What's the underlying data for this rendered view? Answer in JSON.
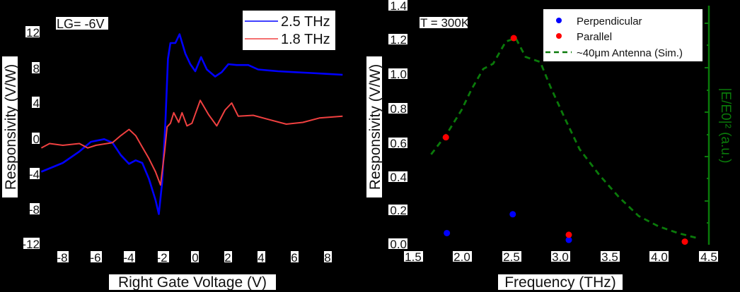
{
  "chart_data": [
    {
      "type": "line",
      "title": "",
      "annotation": "LG= -6V",
      "xlabel": "Right Gate Voltage (V)",
      "ylabel": "Responsivity (V/W)",
      "xlim": [
        -9.3,
        9.3
      ],
      "ylim": [
        -12,
        12
      ],
      "xticks": [
        -8,
        -6,
        -4,
        -2,
        0,
        2,
        4,
        6,
        8
      ],
      "yticks": [
        12,
        8,
        4,
        0,
        -4,
        -8,
        -12
      ],
      "legend_position": "upper right",
      "grid": false,
      "series": [
        {
          "name": "2.5 THz",
          "color": "#0000ff",
          "x": [
            -9.3,
            -8,
            -7,
            -6.3,
            -5.5,
            -5,
            -4.5,
            -4,
            -3.6,
            -3.2,
            -2.8,
            -2.4,
            -2.2,
            -2.0,
            -1.8,
            -1.65,
            -1.5,
            -1.2,
            -0.95,
            -0.6,
            -0.3,
            0,
            0.35,
            0.7,
            1.2,
            1.6,
            2.0,
            2.5,
            3.2,
            3.8,
            5,
            6,
            7,
            8,
            8.9
          ],
          "y": [
            -3.8,
            -2.8,
            -1.5,
            -0.4,
            -0.1,
            -0.5,
            -1.9,
            -2.9,
            -2.5,
            -2.8,
            -4.6,
            -7,
            -8.6,
            -5,
            2,
            9,
            10.8,
            10.8,
            11.8,
            9.6,
            8.4,
            7.6,
            9.2,
            7.8,
            7.0,
            7.5,
            8.4,
            8.3,
            8.3,
            7.8,
            7.6,
            7.5,
            7.4,
            7.3,
            7.2
          ]
        },
        {
          "name": "1.8 THz",
          "color": "#f04040",
          "x": [
            -9.3,
            -8.8,
            -8,
            -7,
            -6.5,
            -6,
            -5,
            -4.5,
            -4,
            -3.6,
            -3.2,
            -2.8,
            -2.4,
            -2.1,
            -1.85,
            -1.7,
            -1.5,
            -1.3,
            -1.0,
            -0.8,
            -0.5,
            -0.2,
            0.3,
            0.8,
            1.3,
            1.8,
            2.2,
            2.6,
            3.5,
            4.5,
            5.5,
            6.5,
            7.5,
            8.9
          ],
          "y": [
            -1.1,
            -0.6,
            -0.8,
            -0.6,
            -1.1,
            -0.8,
            -0.5,
            0.3,
            1.0,
            0.3,
            -1.0,
            -2.3,
            -3.8,
            -5.3,
            -1.5,
            1.3,
            1.7,
            2.9,
            1.8,
            2.9,
            1.4,
            1.7,
            4.3,
            2.7,
            1.4,
            3.2,
            4.0,
            2.5,
            2.6,
            2.1,
            1.6,
            1.8,
            2.3,
            2.5
          ]
        }
      ]
    },
    {
      "type": "scatter",
      "title": "",
      "annotation": "T = 300K",
      "xlabel": "Frequency (THz)",
      "ylabel": "Responsivity (V/W)",
      "ylabel_right": "|E/E0|² (a.u.)",
      "xlim": [
        1.5,
        4.5
      ],
      "ylim": [
        0.0,
        1.4
      ],
      "xticks": [
        1.5,
        2.0,
        2.5,
        3.0,
        3.5,
        4.0,
        4.5
      ],
      "yticks": [
        0.0,
        0.2,
        0.4,
        0.6,
        0.8,
        1.0,
        1.2,
        1.4
      ],
      "legend_position": "upper right",
      "grid": false,
      "series": [
        {
          "name": "Perpendicular",
          "kind": "scatter",
          "color": "#0000ff",
          "x": [
            1.85,
            2.52,
            3.09
          ],
          "y": [
            0.06,
            0.17,
            0.02
          ]
        },
        {
          "name": "Parallel",
          "kind": "scatter",
          "color": "#ff0000",
          "x": [
            1.84,
            2.53,
            3.09,
            4.27
          ],
          "y": [
            0.62,
            1.2,
            0.05,
            0.01
          ]
        },
        {
          "name": "~40μm Antenna (Sim.)",
          "kind": "dashed-line",
          "color": "#0a7a0a",
          "x": [
            1.69,
            1.85,
            2.0,
            2.1,
            2.22,
            2.32,
            2.45,
            2.55,
            2.65,
            2.8,
            2.9,
            3.05,
            3.2,
            3.4,
            3.6,
            3.8,
            4.0,
            4.2,
            4.4
          ],
          "y": [
            0.52,
            0.64,
            0.78,
            0.9,
            1.02,
            1.05,
            1.18,
            1.2,
            1.09,
            1.06,
            0.92,
            0.73,
            0.55,
            0.4,
            0.27,
            0.16,
            0.1,
            0.06,
            0.03
          ]
        }
      ]
    }
  ],
  "left": {
    "annotation": "LG= -6V",
    "xlabel": "Right Gate Voltage (V)",
    "ylabel": "Responsivity (V/W)",
    "legend": [
      "2.5 THz",
      "1.8 THz"
    ],
    "xticks": [
      "-8",
      "-6",
      "-4",
      "-2",
      "0",
      "2",
      "4",
      "6",
      "8"
    ],
    "yticks": [
      "12",
      "8",
      "4",
      "0",
      "-4",
      "-8",
      "-12"
    ]
  },
  "right": {
    "annotation": "T = 300K",
    "xlabel": "Frequency (THz)",
    "ylabel": "Responsivity (V/W)",
    "ylabel_right": "|E/E0|² (a.u.)",
    "legend": [
      "Perpendicular",
      "Parallel",
      "~40μm Antenna (Sim.)"
    ],
    "xticks": [
      "1.5",
      "2.0",
      "2.5",
      "3.0",
      "3.5",
      "4.0",
      "4.5"
    ],
    "yticks": [
      "1.4",
      "1.2",
      "1.0",
      "0.8",
      "0.6",
      "0.4",
      "0.2",
      "0.0"
    ]
  }
}
